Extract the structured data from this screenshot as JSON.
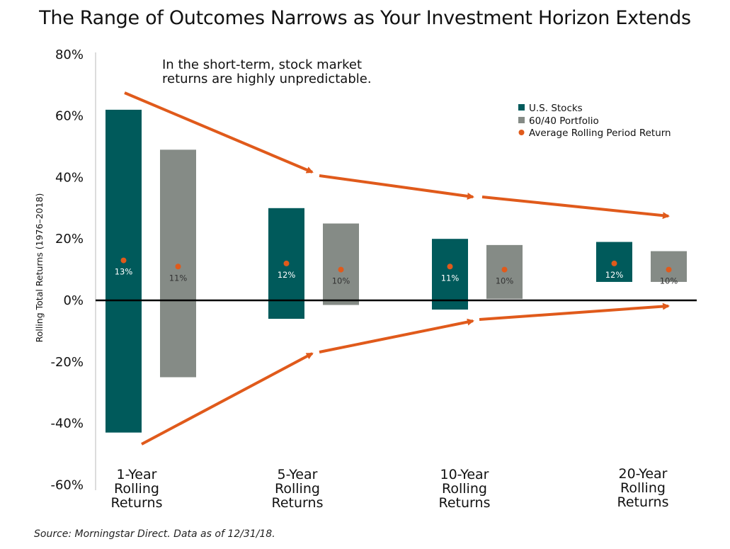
{
  "title": "The Range of Outcomes Narrows as Your Investment Horizon Extends",
  "source": "Source: Morningstar Direct. Data as of 12/31/18.",
  "annotation": [
    "In the short-term, stock market",
    "returns are highly unpredictable."
  ],
  "colors": {
    "stocks": "#005a5b",
    "portfolio": "#858b86",
    "average": "#e05a1b",
    "arrow": "#e05a1b"
  },
  "chart_data": {
    "type": "bar",
    "subtype": "floating-range",
    "ylabel": "Rolling Total Returns (1976–2018)",
    "ylim": [
      -60,
      80
    ],
    "yticks": [
      80,
      60,
      40,
      20,
      0,
      -20,
      -40,
      -60
    ],
    "ytick_labels": [
      "80%",
      "60%",
      "40%",
      "20%",
      "0%",
      "-20%",
      "-40%",
      "-60%"
    ],
    "categories": [
      [
        "1-Year",
        "Rolling",
        "Returns"
      ],
      [
        "5-Year",
        "Rolling",
        "Returns"
      ],
      [
        "10-Year",
        "Rolling",
        "Returns"
      ],
      [
        "20-Year",
        "Rolling",
        "Returns"
      ]
    ],
    "series": [
      {
        "name": "U.S. Stocks",
        "low": [
          -43,
          -6,
          -3,
          6
        ],
        "high": [
          62,
          30,
          20,
          19
        ],
        "average": [
          13,
          12,
          11,
          12
        ],
        "average_labels": [
          "13%",
          "12%",
          "11%",
          "12%"
        ]
      },
      {
        "name": "60/40 Portfolio",
        "low": [
          -25,
          -1.5,
          0.5,
          6
        ],
        "high": [
          49,
          25,
          18,
          16
        ],
        "average": [
          11,
          10,
          10,
          10
        ],
        "average_labels": [
          "11%",
          "10%",
          "10%",
          "10%"
        ]
      }
    ],
    "legend": {
      "position": "top-right",
      "items": [
        "U.S. Stocks",
        "60/40 Portfolio",
        "Average Rolling Period Return"
      ]
    }
  }
}
